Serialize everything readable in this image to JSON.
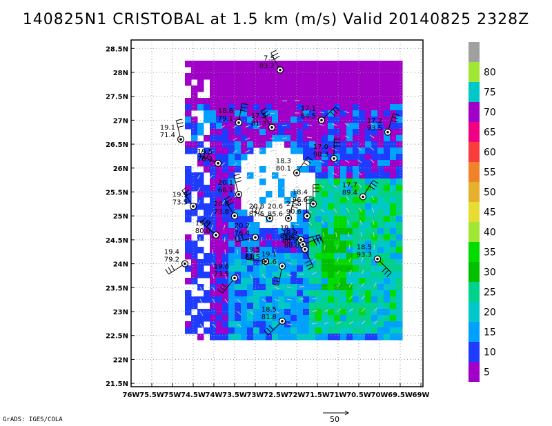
{
  "title": "140825N1 CRISTOBAL at 1.5 km (m/s) Valid 20140825 2328Z",
  "footer": "GrADS: IGES/COLA",
  "scale_vector_label": "50",
  "chart_data": {
    "type": "map",
    "xlim": [
      -76,
      -69
    ],
    "ylim": [
      21.4,
      28.6
    ],
    "lat_ticks": [
      {
        "value": 28.5,
        "label": "28.5N"
      },
      {
        "value": 28,
        "label": "28N"
      },
      {
        "value": 27.5,
        "label": "27.5N"
      },
      {
        "value": 27,
        "label": "27N"
      },
      {
        "value": 26.5,
        "label": "26.5N"
      },
      {
        "value": 26,
        "label": "26N"
      },
      {
        "value": 25.5,
        "label": "25.5N"
      },
      {
        "value": 25,
        "label": "25N"
      },
      {
        "value": 24.5,
        "label": "24.5N"
      },
      {
        "value": 24,
        "label": "24N"
      },
      {
        "value": 23.5,
        "label": "23.5N"
      },
      {
        "value": 23,
        "label": "23N"
      },
      {
        "value": 22.5,
        "label": "22.5N"
      },
      {
        "value": 22,
        "label": "22N"
      },
      {
        "value": 21.5,
        "label": "21.5N"
      }
    ],
    "lon_ticks": [
      {
        "value": -76,
        "label": "76W"
      },
      {
        "value": -75.5,
        "label": "75.5W"
      },
      {
        "value": -75,
        "label": "75W"
      },
      {
        "value": -74.5,
        "label": "74.5W"
      },
      {
        "value": -74,
        "label": "74W"
      },
      {
        "value": -73.5,
        "label": "73.5W"
      },
      {
        "value": -73,
        "label": "73W"
      },
      {
        "value": -72.5,
        "label": "72.5W"
      },
      {
        "value": -72,
        "label": "72W"
      },
      {
        "value": -71.5,
        "label": "71.5W"
      },
      {
        "value": -71,
        "label": "71W"
      },
      {
        "value": -70.5,
        "label": "70.5W"
      },
      {
        "value": -70,
        "label": "70W"
      },
      {
        "value": -69.5,
        "label": "69.5W"
      },
      {
        "value": -69,
        "label": "69W"
      }
    ],
    "colorbar": [
      {
        "label": "",
        "color": "#a0a0a0"
      },
      {
        "label": "80",
        "color": "#a0e632"
      },
      {
        "label": "75",
        "color": "#00c8c8"
      },
      {
        "label": "70",
        "color": "#a000c8"
      },
      {
        "label": "65",
        "color": "#f00082"
      },
      {
        "label": "60",
        "color": "#fa3c3c"
      },
      {
        "label": "55",
        "color": "#f08228"
      },
      {
        "label": "50",
        "color": "#e6af2d"
      },
      {
        "label": "45",
        "color": "#e6dc32"
      },
      {
        "label": "40",
        "color": "#a0e632"
      },
      {
        "label": "35",
        "color": "#00dc00"
      },
      {
        "label": "30",
        "color": "#00c000"
      },
      {
        "label": "25",
        "color": "#00d28c"
      },
      {
        "label": "20",
        "color": "#00c8c8"
      },
      {
        "label": "15",
        "color": "#00a0ff"
      },
      {
        "label": "10",
        "color": "#1e3cff"
      },
      {
        "label": "5",
        "color": "#a000c8"
      }
    ],
    "station_points": [
      {
        "lon": -72.4,
        "lat": 28.05,
        "top": "7.5",
        "bottom": "83.2"
      },
      {
        "lon": -73.4,
        "lat": 26.95,
        "top": "18.8",
        "bottom": "79.1"
      },
      {
        "lon": -72.6,
        "lat": 26.85,
        "top": "17.5",
        "bottom": "81.3"
      },
      {
        "lon": -71.4,
        "lat": 27.0,
        "top": "17.1",
        "bottom": "84.5"
      },
      {
        "lon": -69.8,
        "lat": 26.75,
        "top": "17.2",
        "bottom": "93.5"
      },
      {
        "lon": -74.8,
        "lat": 26.6,
        "top": "19.1",
        "bottom": "71.4"
      },
      {
        "lon": -73.9,
        "lat": 26.1,
        "top": "19.5",
        "bottom": "76.3"
      },
      {
        "lon": -72.0,
        "lat": 25.9,
        "top": "18.3",
        "bottom": "80.1"
      },
      {
        "lon": -71.1,
        "lat": 26.2,
        "top": "17.0",
        "bottom": "90.3"
      },
      {
        "lon": -73.4,
        "lat": 25.45,
        "top": "20.1",
        "bottom": "68.1"
      },
      {
        "lon": -70.4,
        "lat": 25.4,
        "top": "17.7",
        "bottom": "89.4"
      },
      {
        "lon": -74.5,
        "lat": 25.2,
        "top": "19.9",
        "bottom": "73.5"
      },
      {
        "lon": -71.6,
        "lat": 25.25,
        "top": "18.4",
        "bottom": "96.6"
      },
      {
        "lon": -73.5,
        "lat": 25.0,
        "top": "20.8",
        "bottom": "73.8"
      },
      {
        "lon": -72.65,
        "lat": 24.95,
        "top": "20.8",
        "bottom": "87.5"
      },
      {
        "lon": -72.2,
        "lat": 24.95,
        "top": "20.6",
        "bottom": "85.6"
      },
      {
        "lon": -71.75,
        "lat": 25.0,
        "top": "21.5",
        "bottom": "90.6"
      },
      {
        "lon": -73.95,
        "lat": 24.6,
        "top": "19.9",
        "bottom": "80.0"
      },
      {
        "lon": -73.0,
        "lat": 24.55,
        "top": "20.2",
        "bottom": "76.4"
      },
      {
        "lon": -71.9,
        "lat": 24.5,
        "top": "19.1",
        "bottom": "86.1"
      },
      {
        "lon": -71.85,
        "lat": 24.4,
        "top": "19.9",
        "bottom": "86.9"
      },
      {
        "lon": -71.8,
        "lat": 24.3,
        "top": "18.3",
        "bottom": "88.8"
      },
      {
        "lon": -74.7,
        "lat": 24.0,
        "top": "19.4",
        "bottom": "79.2"
      },
      {
        "lon": -72.75,
        "lat": 24.05,
        "top": "19.5",
        "bottom": "81.5"
      },
      {
        "lon": -72.35,
        "lat": 23.95,
        "top": "19.1",
        "bottom": "81.6"
      },
      {
        "lon": -70.05,
        "lat": 24.1,
        "top": "18.5",
        "bottom": "93.3"
      },
      {
        "lon": -73.5,
        "lat": 23.7,
        "top": "19.6",
        "bottom": "73.5"
      },
      {
        "lon": -72.35,
        "lat": 22.8,
        "top": "18.5",
        "bottom": "81.8"
      }
    ]
  }
}
